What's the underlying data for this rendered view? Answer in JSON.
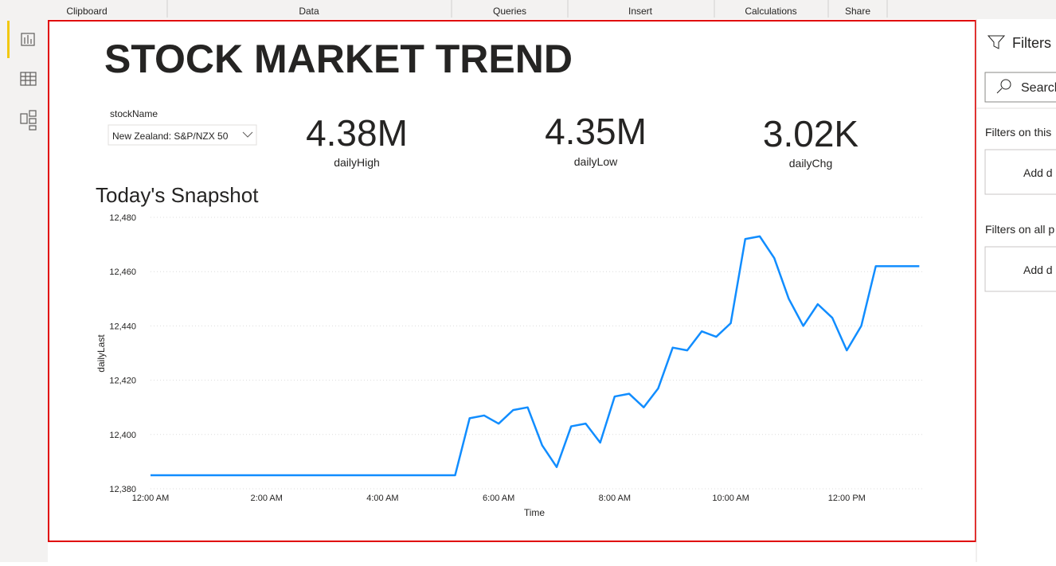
{
  "ribbon": {
    "groups": [
      "Clipboard",
      "Data",
      "Queries",
      "Insert",
      "Calculations",
      "Share"
    ]
  },
  "report": {
    "title": "STOCK MARKET TREND",
    "slicer": {
      "label": "stockName",
      "selected": "New Zealand: S&P/NZX 50"
    },
    "cards": [
      {
        "value": "4.38M",
        "label": "dailyHigh"
      },
      {
        "value": "4.35M",
        "label": "dailyLow"
      },
      {
        "value": "3.02K",
        "label": "dailyChg"
      }
    ]
  },
  "filters": {
    "title": "Filters",
    "search": "Search",
    "sections": [
      {
        "title": "Filters on this",
        "placeholder": "Add d"
      },
      {
        "title": "Filters on all p",
        "placeholder": "Add d"
      }
    ]
  },
  "chart_data": {
    "type": "line",
    "title": "Today's Snapshot",
    "x_label": "Time",
    "y_label": "dailyLast",
    "color": "#118dff",
    "grid": true,
    "x": [
      0,
      5.25,
      5.5,
      5.75,
      6,
      6.25,
      6.5,
      6.75,
      7,
      7.25,
      7.5,
      7.75,
      8,
      8.25,
      8.5,
      8.75,
      9,
      9.25,
      9.5,
      9.75,
      10,
      10.25,
      10.5,
      10.75,
      11,
      11.25,
      11.5,
      11.75,
      12,
      12.25,
      12.5,
      13.25
    ],
    "values": [
      12385,
      12385,
      12406,
      12407,
      12404,
      12409,
      12410,
      12396,
      12388,
      12403,
      12404,
      12397,
      12414,
      12415,
      12410,
      12417,
      12432,
      12431,
      12438,
      12436,
      12441,
      12472,
      12473,
      12465,
      12450,
      12440,
      12448,
      12443,
      12431,
      12440,
      12462,
      12462
    ],
    "xlim": [
      0,
      13.3
    ],
    "xticks": [
      {
        "value": 0,
        "label": "12:00 AM"
      },
      {
        "value": 2,
        "label": "2:00 AM"
      },
      {
        "value": 4,
        "label": "4:00 AM"
      },
      {
        "value": 6,
        "label": "6:00 AM"
      },
      {
        "value": 8,
        "label": "8:00 AM"
      },
      {
        "value": 10,
        "label": "10:00 AM"
      },
      {
        "value": 12,
        "label": "12:00 PM"
      }
    ],
    "ylim": [
      12380,
      12480
    ],
    "yticks": [
      {
        "value": 12380,
        "label": "12,380"
      },
      {
        "value": 12400,
        "label": "12,400"
      },
      {
        "value": 12420,
        "label": "12,420"
      },
      {
        "value": 12440,
        "label": "12,440"
      },
      {
        "value": 12460,
        "label": "12,460"
      },
      {
        "value": 12480,
        "label": "12,480"
      }
    ]
  }
}
